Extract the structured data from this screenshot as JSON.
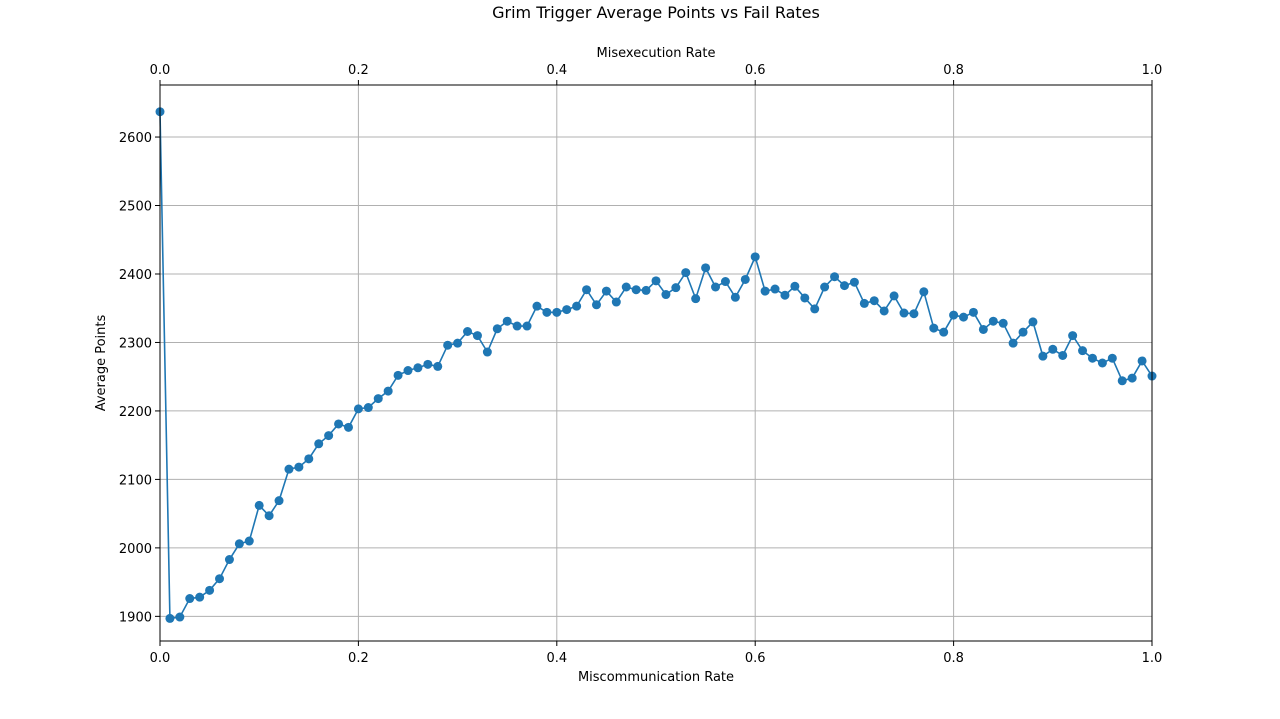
{
  "chart_data": {
    "type": "line",
    "title": "Grim Trigger Average Points vs Fail Rates",
    "xlabel": "Miscommunication Rate",
    "xlabel_top": "Misexecution Rate",
    "ylabel": "Average Points",
    "xlim": [
      0,
      1
    ],
    "ylim": [
      1864,
      2676
    ],
    "xticks": [
      0,
      0.2,
      0.4,
      0.6,
      0.8,
      1.0
    ],
    "xtick_labels": [
      "0.0",
      "0.2",
      "0.4",
      "0.6",
      "0.8",
      "1.0"
    ],
    "yticks": [
      1900,
      2000,
      2100,
      2200,
      2300,
      2400,
      2500,
      2600
    ],
    "ytick_labels": [
      "1900",
      "2000",
      "2100",
      "2200",
      "2300",
      "2400",
      "2500",
      "2600"
    ],
    "grid": true,
    "marker": "circle",
    "color": "#1f77b4",
    "series": [
      {
        "x": [
          0.0,
          0.01,
          0.02,
          0.03,
          0.04,
          0.05,
          0.06,
          0.07,
          0.08,
          0.09,
          0.1,
          0.11,
          0.12,
          0.13,
          0.14,
          0.15,
          0.16,
          0.17,
          0.18,
          0.19,
          0.2,
          0.21,
          0.22,
          0.23,
          0.24,
          0.25,
          0.26,
          0.27,
          0.28,
          0.29,
          0.3,
          0.31,
          0.32,
          0.33,
          0.34,
          0.35,
          0.36,
          0.37,
          0.38,
          0.39,
          0.4,
          0.41,
          0.42,
          0.43,
          0.44,
          0.45,
          0.46,
          0.47,
          0.48,
          0.49,
          0.5,
          0.51,
          0.52,
          0.53,
          0.54,
          0.55,
          0.56,
          0.57,
          0.58,
          0.59,
          0.6,
          0.61,
          0.62,
          0.63,
          0.64,
          0.65,
          0.66,
          0.67,
          0.68,
          0.69,
          0.7,
          0.71,
          0.72,
          0.73,
          0.74,
          0.75,
          0.76,
          0.77,
          0.78,
          0.79,
          0.8,
          0.81,
          0.82,
          0.83,
          0.84,
          0.85,
          0.86,
          0.87,
          0.88,
          0.89,
          0.9,
          0.91,
          0.92,
          0.93,
          0.94,
          0.95,
          0.96,
          0.97,
          0.98,
          0.99,
          1.0
        ],
        "y": [
          2637,
          1897,
          1899,
          1926,
          1928,
          1938,
          1955,
          1983,
          2006,
          2010,
          2062,
          2047,
          2069,
          2115,
          2118,
          2130,
          2152,
          2164,
          2181,
          2176,
          2203,
          2205,
          2218,
          2229,
          2252,
          2259,
          2263,
          2268,
          2265,
          2296,
          2299,
          2316,
          2310,
          2286,
          2320,
          2331,
          2324,
          2324,
          2353,
          2344,
          2344,
          2348,
          2353,
          2377,
          2355,
          2375,
          2359,
          2381,
          2377,
          2376,
          2390,
          2370,
          2380,
          2402,
          2364,
          2409,
          2381,
          2389,
          2366,
          2392,
          2425,
          2375,
          2378,
          2369,
          2382,
          2365,
          2349,
          2381,
          2396,
          2383,
          2388,
          2357,
          2361,
          2346,
          2368,
          2343,
          2342,
          2374,
          2321,
          2315,
          2340,
          2337,
          2344,
          2319,
          2331,
          2328,
          2299,
          2315,
          2330,
          2280,
          2290,
          2281,
          2310,
          2288,
          2277,
          2270,
          2277,
          2244,
          2248,
          2273,
          2251
        ]
      }
    ]
  }
}
